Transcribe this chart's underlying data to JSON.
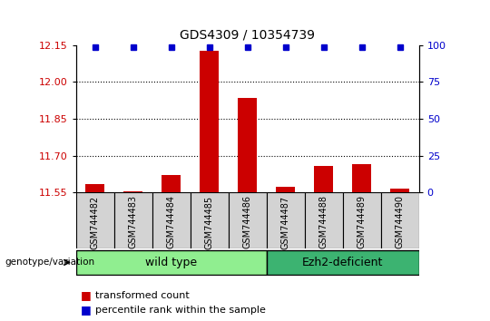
{
  "title": "GDS4309 / 10354739",
  "samples": [
    "GSM744482",
    "GSM744483",
    "GSM744484",
    "GSM744485",
    "GSM744486",
    "GSM744487",
    "GSM744488",
    "GSM744489",
    "GSM744490"
  ],
  "transformed_counts": [
    11.585,
    11.555,
    11.62,
    12.125,
    11.935,
    11.575,
    11.66,
    11.665,
    11.565
  ],
  "percentile_ranks": [
    99,
    99,
    99,
    99,
    99,
    99,
    99,
    99,
    99
  ],
  "ylim_left": [
    11.55,
    12.15
  ],
  "yticks_left": [
    11.55,
    11.7,
    11.85,
    12.0,
    12.15
  ],
  "yticks_right": [
    0,
    25,
    50,
    75,
    100
  ],
  "ylim_right": [
    0,
    100
  ],
  "bar_color": "#cc0000",
  "scatter_color": "#0000cc",
  "wild_type_indices": [
    0,
    1,
    2,
    3,
    4
  ],
  "ezh2_indices": [
    5,
    6,
    7,
    8
  ],
  "wild_type_label": "wild type",
  "ezh2_label": "Ezh2-deficient",
  "genotype_label": "genotype/variation",
  "legend_red_label": "transformed count",
  "legend_blue_label": "percentile rank within the sample",
  "wild_type_color": "#90ee90",
  "ezh2_color": "#3cb371",
  "tick_label_color_left": "#cc0000",
  "tick_label_color_right": "#0000cc",
  "sample_box_color": "#d3d3d3",
  "grid_color": "black",
  "grid_style": ":"
}
